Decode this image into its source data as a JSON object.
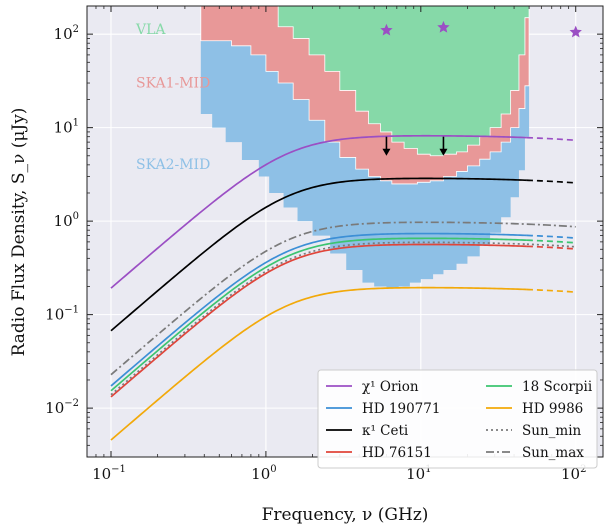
{
  "chart_data": {
    "type": "line",
    "xlabel": "Frequency, ν (GHz)",
    "ylabel": "Radio Flux Density, S_ν (μJy)",
    "xscale": "log",
    "yscale": "log",
    "xlim": [
      0.07,
      150
    ],
    "ylim": [
      0.003,
      200
    ],
    "grid": true,
    "legend_position": "bottom-right",
    "x_ticks": [
      {
        "base": "10",
        "exp": "−1",
        "value": 0.1
      },
      {
        "base": "10",
        "exp": "0",
        "value": 1
      },
      {
        "base": "10",
        "exp": "1",
        "value": 10
      },
      {
        "base": "10",
        "exp": "2",
        "value": 100
      }
    ],
    "y_ticks": [
      {
        "base": "10",
        "exp": "−2",
        "value": 0.01
      },
      {
        "base": "10",
        "exp": "−1",
        "value": 0.1
      },
      {
        "base": "10",
        "exp": "0",
        "value": 1
      },
      {
        "base": "10",
        "exp": "1",
        "value": 10
      },
      {
        "base": "10",
        "exp": "2",
        "value": 100
      }
    ],
    "regions": [
      {
        "name": "VLA",
        "color": "#86d9a8",
        "label_pos": [
          0.145,
          100
        ]
      },
      {
        "name": "SKA1-MID",
        "color": "#e89898",
        "label_pos": [
          0.145,
          27
        ]
      },
      {
        "name": "SKA2-MID",
        "color": "#8ec0e6",
        "label_pos": [
          0.145,
          3.6
        ]
      }
    ],
    "series": [
      {
        "name": "χ¹ Orion",
        "color": "#9b4fc4",
        "peak": 8.0,
        "style": "solid"
      },
      {
        "name": "HD 190771",
        "color": "#3c8fd6",
        "peak": 0.72,
        "style": "solid"
      },
      {
        "name": "κ¹ Ceti",
        "color": "#000000",
        "peak": 2.8,
        "style": "solid"
      },
      {
        "name": "HD 76151",
        "color": "#e0453a",
        "peak": 0.55,
        "style": "solid"
      },
      {
        "name": "18 Scorpii",
        "color": "#3cc470",
        "peak": 0.64,
        "style": "solid"
      },
      {
        "name": "HD 9986",
        "color": "#f2a90a",
        "peak": 0.19,
        "style": "solid"
      },
      {
        "name": "Sun_min",
        "color": "#7a7a7a",
        "peak": 0.58,
        "style": "dotted"
      },
      {
        "name": "Sun_max",
        "color": "#7a7a7a",
        "peak": 0.95,
        "style": "dashdot"
      }
    ],
    "star_markers": [
      {
        "x": 6,
        "y": 110
      },
      {
        "x": 14,
        "y": 118
      },
      {
        "x": 100,
        "y": 105
      }
    ],
    "arrows": [
      {
        "x": 6,
        "y_from": 8.0,
        "y_to": 5.0
      },
      {
        "x": 14,
        "y_from": 8.0,
        "y_to": 5.0
      }
    ],
    "region_colors": {
      "vla": "#86d9a8",
      "ska1": "#e89898",
      "ska2": "#8ec0e6",
      "star": "#9b4fc4"
    }
  }
}
